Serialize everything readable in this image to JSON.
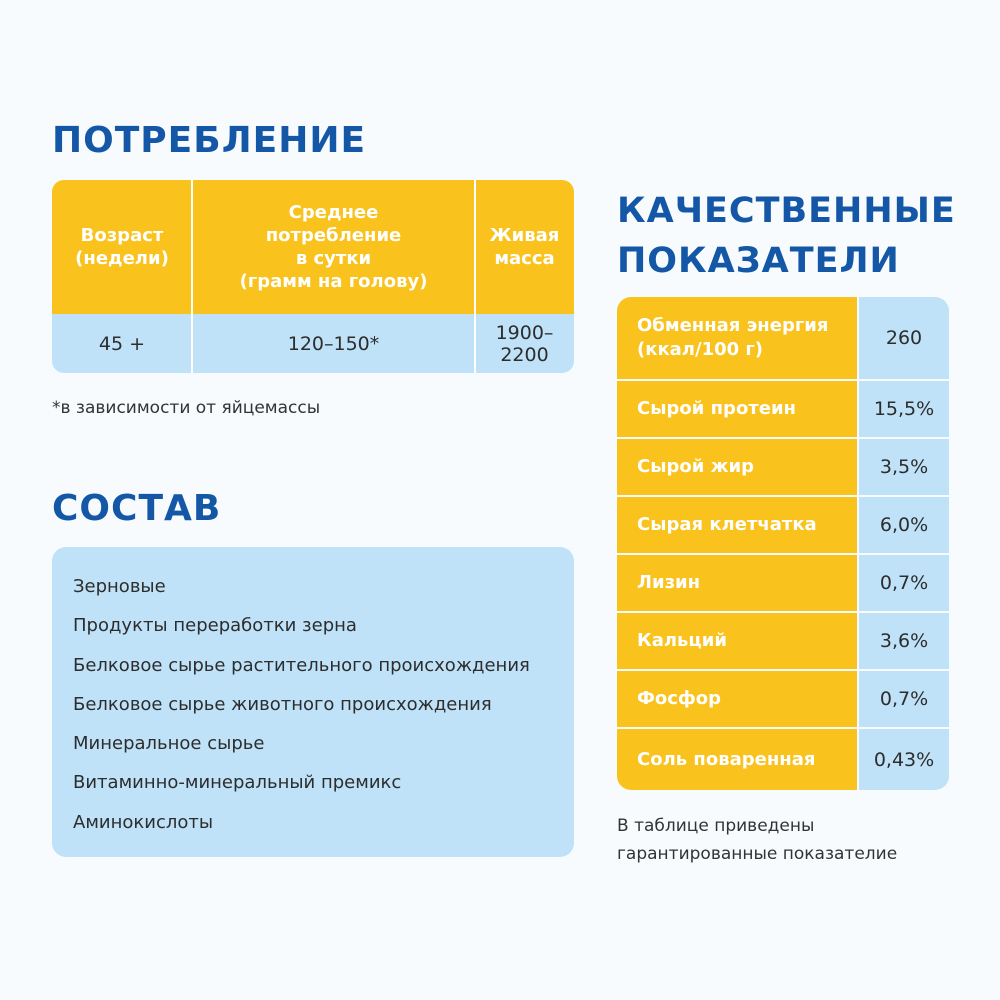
{
  "consumption": {
    "title": "ПОТРЕБЛЕНИЕ",
    "headers": [
      "Возраст\n(недели)",
      "Среднее\nпотребление\nв сутки\n(грамм на голову)",
      "Живая\nмасса"
    ],
    "row": [
      "45 +",
      "120–150*",
      "1900–2200"
    ],
    "note": "*в зависимости от яйцемассы"
  },
  "composition": {
    "title": "СОСТАВ",
    "items": [
      "Зерновые",
      "Продукты переработки зерна",
      "Белковое сырье растительного происхождения",
      "Белковое сырье животного происхождения",
      "Минеральное сырье",
      "Витаминно-минеральный премикс",
      "Аминокислоты"
    ]
  },
  "quality": {
    "title_line1": "КАЧЕСТВЕННЫЕ",
    "title_line2": "ПОКАЗАТЕЛИ",
    "rows": [
      {
        "label": "Обменная энергия\n(ккал/100 г)",
        "value": "260"
      },
      {
        "label": "Сырой протеин",
        "value": "15,5%"
      },
      {
        "label": "Сырой жир",
        "value": "3,5%"
      },
      {
        "label": "Сырая клетчатка",
        "value": "6,0%"
      },
      {
        "label": "Лизин",
        "value": "0,7%"
      },
      {
        "label": "Кальций",
        "value": "3,6%"
      },
      {
        "label": "Фосфор",
        "value": "0,7%"
      },
      {
        "label": "Соль поваренная",
        "value": "0,43%"
      }
    ],
    "footnote": "В таблице приведены гарантированные показателие"
  },
  "colors": {
    "heading": "#1457a6",
    "accent_yellow": "#f9c21d",
    "light_blue": "#bfe2f8",
    "background": "#f7fbfe"
  }
}
